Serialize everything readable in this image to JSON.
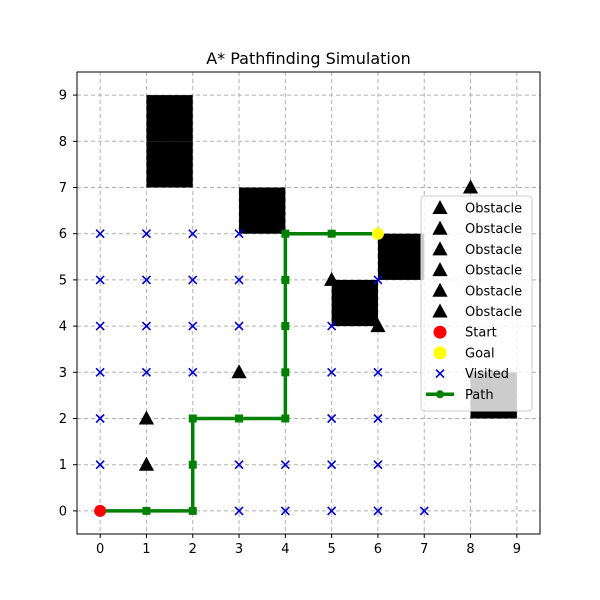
{
  "chart_data": {
    "type": "scatter",
    "title": "A* Pathfinding Simulation",
    "xlabel": "",
    "ylabel": "",
    "xlim": [
      -0.5,
      9.5
    ],
    "ylim": [
      -0.5,
      9.5
    ],
    "xticks": [
      0,
      1,
      2,
      3,
      4,
      5,
      6,
      7,
      8,
      9
    ],
    "yticks": [
      0,
      1,
      2,
      3,
      4,
      5,
      6,
      7,
      8,
      9
    ],
    "grid": true,
    "grid_style": "dashed",
    "legend_placement": "center-right",
    "obstacle_blocks": [
      {
        "x": 1,
        "y": 8
      },
      {
        "x": 1,
        "y": 7
      },
      {
        "x": 3,
        "y": 6
      },
      {
        "x": 6,
        "y": 5
      },
      {
        "x": 5,
        "y": 4
      },
      {
        "x": 8,
        "y": 2
      }
    ],
    "series": [
      {
        "name": "Obstacle",
        "kind": "marker",
        "marker": "triangle",
        "color": "#000000",
        "points": [
          [
            8,
            7
          ]
        ]
      },
      {
        "name": "Obstacle",
        "kind": "marker",
        "marker": "triangle",
        "color": "#000000",
        "points": [
          [
            5,
            5
          ]
        ]
      },
      {
        "name": "Obstacle",
        "kind": "marker",
        "marker": "triangle",
        "color": "#000000",
        "points": [
          [
            6,
            4
          ]
        ]
      },
      {
        "name": "Obstacle",
        "kind": "marker",
        "marker": "triangle",
        "color": "#000000",
        "points": [
          [
            3,
            3
          ]
        ]
      },
      {
        "name": "Obstacle",
        "kind": "marker",
        "marker": "triangle",
        "color": "#000000",
        "points": [
          [
            1,
            2
          ]
        ]
      },
      {
        "name": "Obstacle",
        "kind": "marker",
        "marker": "triangle",
        "color": "#000000",
        "points": [
          [
            1,
            1
          ]
        ]
      },
      {
        "name": "Start",
        "kind": "marker",
        "marker": "circle",
        "color": "#ff0000",
        "points": [
          [
            0,
            0
          ]
        ]
      },
      {
        "name": "Goal",
        "kind": "marker",
        "marker": "circle",
        "color": "#ffff00",
        "points": [
          [
            6,
            6
          ]
        ]
      },
      {
        "name": "Visited",
        "kind": "marker",
        "marker": "x",
        "color": "#0000cc",
        "points": [
          [
            0,
            6
          ],
          [
            1,
            6
          ],
          [
            2,
            6
          ],
          [
            3,
            6
          ],
          [
            0,
            5
          ],
          [
            1,
            5
          ],
          [
            2,
            5
          ],
          [
            3,
            5
          ],
          [
            6,
            5
          ],
          [
            0,
            4
          ],
          [
            1,
            4
          ],
          [
            2,
            4
          ],
          [
            3,
            4
          ],
          [
            5,
            4
          ],
          [
            0,
            3
          ],
          [
            1,
            3
          ],
          [
            2,
            3
          ],
          [
            5,
            3
          ],
          [
            6,
            3
          ],
          [
            0,
            2
          ],
          [
            5,
            2
          ],
          [
            6,
            2
          ],
          [
            0,
            1
          ],
          [
            3,
            1
          ],
          [
            4,
            1
          ],
          [
            5,
            1
          ],
          [
            6,
            1
          ],
          [
            0,
            0
          ],
          [
            3,
            0
          ],
          [
            4,
            0
          ],
          [
            5,
            0
          ],
          [
            6,
            0
          ],
          [
            7,
            0
          ]
        ]
      },
      {
        "name": "Path",
        "kind": "line",
        "marker": "square",
        "color": "#008000",
        "points": [
          [
            0,
            0
          ],
          [
            1,
            0
          ],
          [
            2,
            0
          ],
          [
            2,
            1
          ],
          [
            2,
            2
          ],
          [
            3,
            2
          ],
          [
            4,
            2
          ],
          [
            4,
            3
          ],
          [
            4,
            4
          ],
          [
            4,
            5
          ],
          [
            4,
            6
          ],
          [
            5,
            6
          ],
          [
            6,
            6
          ]
        ]
      }
    ]
  }
}
